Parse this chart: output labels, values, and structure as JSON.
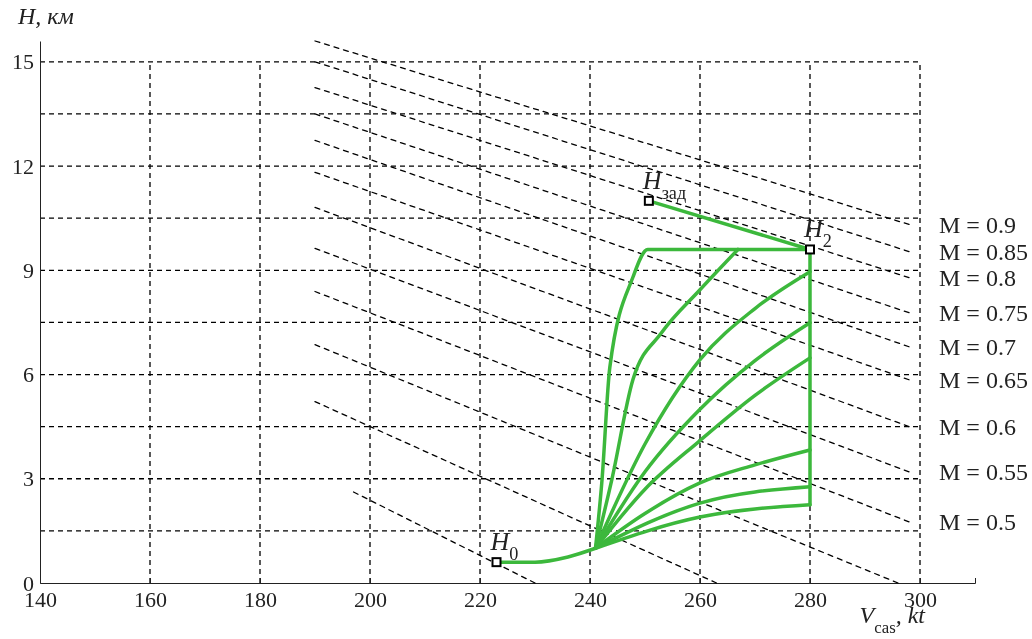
{
  "chart_data": {
    "type": "line",
    "xlabel": "V$_{cas}$, kt",
    "ylabel": "H, км",
    "xlim": [
      140,
      310
    ],
    "ylim": [
      0,
      15.6
    ],
    "xticks": [
      140,
      160,
      180,
      200,
      220,
      240,
      260,
      280,
      300
    ],
    "yticks": [
      0,
      {
        "value": 1.5,
        "label": null
      },
      3,
      {
        "value": 4.5,
        "label": null
      },
      6,
      {
        "value": 7.5,
        "label": null
      },
      9,
      {
        "value": 10.5,
        "label": null
      },
      12,
      {
        "value": 13.5,
        "label": null
      },
      15
    ],
    "grid": true,
    "series": [
      {
        "name": "M = 0.9",
        "color": "#000000",
        "line_style": "dashed",
        "x": [
          190,
          298
        ],
        "values": [
          15.6,
          10.32
        ]
      },
      {
        "name": "M = 0.85",
        "color": "#000000",
        "line_style": "dashed",
        "x": [
          190,
          298
        ],
        "values": [
          15.0,
          9.54
        ]
      },
      {
        "name": "M = 0.8",
        "color": "#000000",
        "line_style": "dashed",
        "x": [
          190,
          298
        ],
        "values": [
          14.26,
          8.79
        ]
      },
      {
        "name": "M = 0.75",
        "color": "#000000",
        "line_style": "dashed",
        "x": [
          190,
          298
        ],
        "values": [
          13.5,
          7.78
        ]
      },
      {
        "name": "M = 0.7",
        "color": "#000000",
        "line_style": "dashed",
        "x": [
          190,
          298
        ],
        "values": [
          12.74,
          6.8
        ]
      },
      {
        "name": "M = 0.65",
        "color": "#000000",
        "line_style": "dashed",
        "x": [
          190,
          298
        ],
        "values": [
          11.82,
          5.85
        ]
      },
      {
        "name": "M = 0.6",
        "color": "#000000",
        "line_style": "dashed",
        "x": [
          190,
          298
        ],
        "values": [
          10.81,
          4.5
        ]
      },
      {
        "name": "M = 0.55",
        "color": "#000000",
        "line_style": "dashed",
        "x": [
          190,
          298
        ],
        "values": [
          9.63,
          3.2
        ]
      },
      {
        "name": "M = 0.5",
        "color": "#000000",
        "line_style": "dashed",
        "x": [
          190,
          298
        ],
        "values": [
          8.39,
          1.76
        ]
      },
      {
        "color": "#000000",
        "line_style": "dashed",
        "x": [
          190,
          296
        ],
        "values": [
          6.86,
          0
        ]
      },
      {
        "color": "#000000",
        "line_style": "dashed",
        "x": [
          190,
          263
        ],
        "values": [
          5.22,
          0
        ]
      },
      {
        "color": "#000000",
        "line_style": "dashed",
        "x": [
          197,
          230
        ],
        "values": [
          2.62,
          0
        ]
      },
      {
        "color": "#3cb83c",
        "line_style": "solid",
        "x": [
          223,
          230,
          236,
          241
        ],
        "values": [
          0.6,
          0.6,
          0.75,
          1.0
        ]
      },
      {
        "color": "#3cb83c",
        "line_style": "solid",
        "x": [
          241,
          242.2,
          243.6,
          247.8,
          250.5,
          280,
          280
        ],
        "values": [
          1.0,
          3.0,
          6.2,
          8.8,
          9.6,
          9.6,
          2.25
        ]
      },
      {
        "color": "#3cb83c",
        "line_style": "solid",
        "x": [
          241,
          244,
          247.8,
          253,
          260,
          266.9
        ],
        "values": [
          1.0,
          3.0,
          5.85,
          7.2,
          8.44,
          9.6
        ]
      },
      {
        "color": "#3cb83c",
        "line_style": "solid",
        "x": [
          241,
          250,
          260,
          270,
          280
        ],
        "values": [
          1.0,
          4.0,
          6.43,
          7.9,
          8.96
        ]
      },
      {
        "color": "#3cb83c",
        "line_style": "solid",
        "x": [
          241,
          250,
          260,
          270,
          280
        ],
        "values": [
          1.0,
          3.2,
          5.0,
          6.4,
          7.49
        ]
      },
      {
        "color": "#3cb83c",
        "line_style": "solid",
        "x": [
          241,
          250,
          260,
          270,
          280
        ],
        "values": [
          1.0,
          2.7,
          4.1,
          5.4,
          6.48
        ]
      },
      {
        "color": "#3cb83c",
        "line_style": "solid",
        "x": [
          241,
          250,
          260,
          270,
          280
        ],
        "values": [
          1.0,
          2.0,
          2.88,
          3.4,
          3.83
        ]
      },
      {
        "color": "#3cb83c",
        "line_style": "solid",
        "x": [
          241,
          260,
          280
        ],
        "values": [
          1.0,
          2.3,
          2.77
        ]
      },
      {
        "color": "#3cb83c",
        "line_style": "solid",
        "x": [
          241,
          260,
          280
        ],
        "values": [
          1.0,
          1.9,
          2.25
        ]
      },
      {
        "color": "#3cb83c",
        "line_style": "solid",
        "x": [
          280,
          250.7
        ],
        "values": [
          9.6,
          11.0
        ]
      },
      {
        "type": "scatter",
        "marker": "square",
        "color": "#000000",
        "x": [
          223,
          280,
          250.7
        ],
        "values": [
          0.6,
          9.6,
          11.0
        ]
      }
    ],
    "annotations": [
      {
        "text": "H$_{0}$",
        "x": 223,
        "y": 0.6
      },
      {
        "text": "H$_{2}$",
        "x": 280,
        "y": 9.6
      },
      {
        "text": "H$_{зад}$",
        "x": 250.7,
        "y": 11.0
      }
    ]
  }
}
